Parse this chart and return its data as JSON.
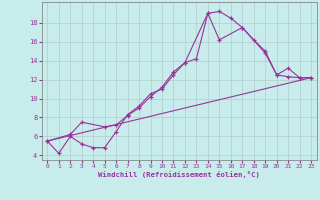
{
  "bg_color": "#c8ecec",
  "grid_color": "#b0cccc",
  "line_color": "#993399",
  "xlabel": "Windchill (Refroidissement éolien,°C)",
  "xlim": [
    -0.5,
    23.5
  ],
  "ylim": [
    3.5,
    20.2
  ],
  "xticks": [
    0,
    1,
    2,
    3,
    4,
    5,
    6,
    7,
    8,
    9,
    10,
    11,
    12,
    13,
    14,
    15,
    16,
    17,
    18,
    19,
    20,
    21,
    22,
    23
  ],
  "yticks": [
    4,
    6,
    8,
    10,
    12,
    14,
    16,
    18
  ],
  "line1_x": [
    0,
    1,
    2,
    3,
    4,
    5,
    6,
    7,
    8,
    9,
    10,
    11,
    12,
    13,
    14,
    15,
    16,
    17,
    18,
    19,
    20,
    21,
    22,
    23
  ],
  "line1_y": [
    5.5,
    4.2,
    6.0,
    5.2,
    4.8,
    4.8,
    6.5,
    8.3,
    9.2,
    10.5,
    11.0,
    12.5,
    13.8,
    14.2,
    19.0,
    19.2,
    18.5,
    17.5,
    16.2,
    15.0,
    12.5,
    12.3,
    12.2,
    12.2
  ],
  "line2_x": [
    0,
    2,
    3,
    5,
    6,
    7,
    8,
    9,
    10,
    11,
    12,
    14,
    15,
    17,
    19,
    20,
    21,
    22,
    23
  ],
  "line2_y": [
    5.5,
    6.2,
    7.5,
    7.0,
    7.2,
    8.2,
    9.0,
    10.2,
    11.2,
    12.8,
    13.8,
    19.0,
    16.2,
    17.5,
    14.8,
    12.5,
    13.2,
    12.2,
    12.2
  ],
  "line3_x": [
    0,
    23
  ],
  "line3_y": [
    5.5,
    12.2
  ]
}
